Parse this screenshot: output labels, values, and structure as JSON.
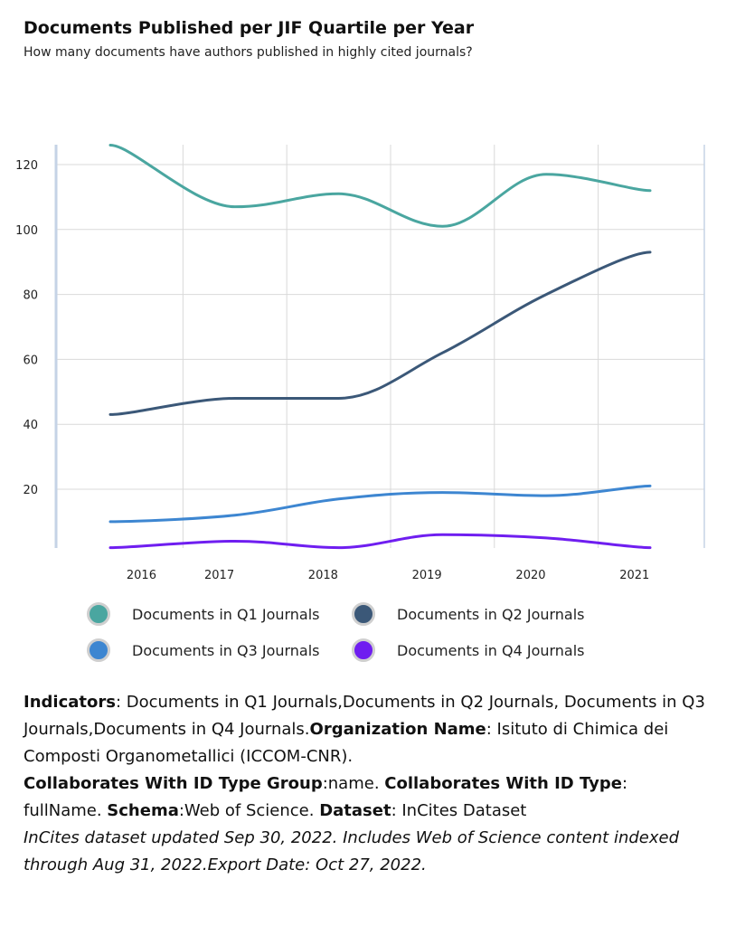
{
  "chart_data": {
    "type": "line",
    "title": "Documents Published per JIF Quartile per Year",
    "subtitle": "How many documents have authors published in highly cited journals?",
    "xlabel": "",
    "ylabel": "",
    "categories": [
      "2016",
      "2017",
      "2018",
      "2019",
      "2020",
      "2021"
    ],
    "x": [
      2015.7,
      2016.9,
      2017.9,
      2018.9,
      2019.9,
      2020.9
    ],
    "yticks": [
      20,
      40,
      60,
      80,
      100,
      120
    ],
    "ylim": [
      2,
      126
    ],
    "grid": true,
    "legend_position": "bottom",
    "series": [
      {
        "name": "Documents in Q1 Journals",
        "color": "#4aa6a0",
        "values": [
          126,
          107,
          111,
          101,
          117,
          112
        ]
      },
      {
        "name": "Documents in Q2 Journals",
        "color": "#3b5878",
        "values": [
          43,
          48,
          48,
          62,
          80,
          93
        ]
      },
      {
        "name": "Documents in Q3 Journals",
        "color": "#3d86d1",
        "values": [
          10,
          12,
          17,
          19,
          18,
          21
        ]
      },
      {
        "name": "Documents in Q4 Journals",
        "color": "#6f1ef0",
        "values": [
          2,
          4,
          2,
          6,
          5,
          2
        ]
      }
    ]
  },
  "footnote": {
    "indicators_label": "Indicators",
    "indicators_value": ": Documents in Q1 Journals,Documents in Q2 Journals, Documents in Q3 Journals,Documents in Q4 Journals.",
    "org_label": "Organization Name",
    "org_value": ": Isituto di Chimica dei Composti Organometallici (ICCOM-CNR).",
    "collab_group_label": "Collaborates With ID Type Group",
    "collab_group_value": ":name. ",
    "collab_type_label": "Collaborates With ID Type",
    "collab_type_value": ": fullName. ",
    "schema_label": "Schema",
    "schema_value": ":Web of Science. ",
    "dataset_label": "Dataset",
    "dataset_value": ": InCites Dataset",
    "disclaimer": "InCites dataset updated Sep 30, 2022. Includes Web of Science content indexed through Aug 31, 2022.Export Date: Oct 27, 2022."
  }
}
